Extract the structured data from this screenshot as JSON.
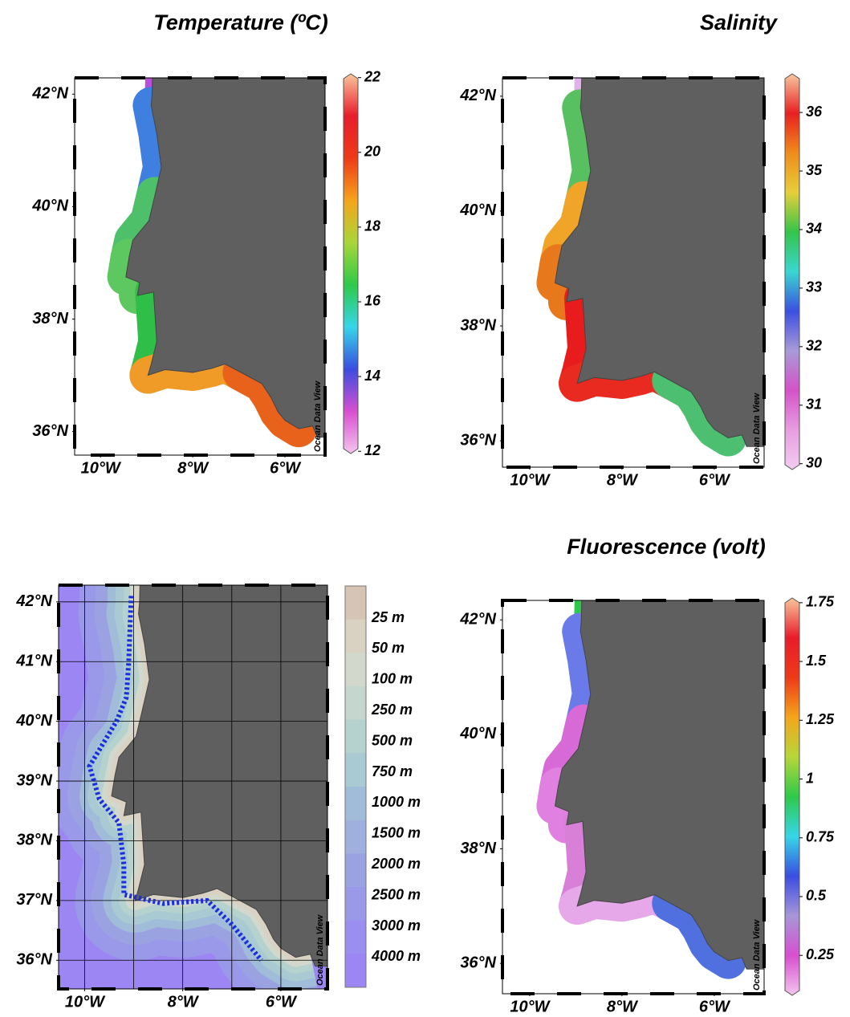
{
  "panels": [
    {
      "title": "Temperature (ºC)",
      "lonlim": [
        -10.56,
        -5.13
      ],
      "latlim": [
        35.58,
        42.29
      ],
      "lonticks": [
        {
          "value": -10,
          "label": "10°W"
        },
        {
          "value": -8,
          "label": "8°W"
        },
        {
          "value": -6,
          "label": "6°W"
        }
      ],
      "latticks": [
        {
          "value": 42,
          "label": "42°N"
        },
        {
          "value": 40,
          "label": "40°N"
        },
        {
          "value": 38,
          "label": "38°N"
        },
        {
          "value": 36,
          "label": "36°N"
        }
      ],
      "colorbar": {
        "lim": [
          11.94,
          22.1
        ],
        "ticks": [
          12,
          14,
          16,
          18,
          20,
          22
        ],
        "colors": [
          "#f3c6ee",
          "#d84fd0",
          "#3a4de0",
          "#36d6e8",
          "#2ec94a",
          "#a9d63a",
          "#f4a51c",
          "#ee3a18",
          "#e81c2c",
          "#f9c69a"
        ]
      },
      "band_colors": [
        "#b84fd8",
        "#3f7fe0",
        "#4fc06a",
        "#5ec860",
        "#2fbf48",
        "#f09a28",
        "#e8621c"
      ],
      "watermark": "Ocean Data View"
    },
    {
      "title": "Salinity",
      "lonlim": [
        -10.59,
        -4.92
      ],
      "latlim": [
        35.54,
        42.32
      ],
      "lonticks": [
        {
          "value": -10,
          "label": "10°W"
        },
        {
          "value": -8,
          "label": "8°W"
        },
        {
          "value": -6,
          "label": "6°W"
        }
      ],
      "latticks": [
        {
          "value": 42,
          "label": "42°N"
        },
        {
          "value": 40,
          "label": "40°N"
        },
        {
          "value": 38,
          "label": "38°N"
        },
        {
          "value": 36,
          "label": "36°N"
        }
      ],
      "colorbar": {
        "lim": [
          29.9,
          36.66
        ],
        "ticks": [
          36,
          35,
          34,
          33,
          32,
          31,
          30
        ],
        "colors": [
          "#f2cdf0",
          "#e79ee0",
          "#d452c8",
          "#a99ad8",
          "#3b4fe0",
          "#3ad6d0",
          "#34c44a",
          "#e6cf3a",
          "#f08c1c",
          "#e82020",
          "#f7c8a0"
        ]
      },
      "band_colors": [
        "#e0b0e8",
        "#58c060",
        "#f0a428",
        "#e8781c",
        "#e81c1c",
        "#e82a20",
        "#4cc070"
      ],
      "watermark": "Ocean Data View"
    },
    {
      "lonlim": [
        -10.53,
        -5.05
      ],
      "latlim": [
        35.52,
        42.28
      ],
      "lonticks": [
        {
          "value": -10,
          "label": "10°W"
        },
        {
          "value": -8,
          "label": "8°W"
        },
        {
          "value": -6,
          "label": "6°W"
        }
      ],
      "latticks": [
        {
          "value": 42,
          "label": "42°N"
        },
        {
          "value": 41,
          "label": "41°N"
        },
        {
          "value": 40,
          "label": "40°N"
        },
        {
          "value": 39,
          "label": "39°N"
        },
        {
          "value": 38,
          "label": "38°N"
        },
        {
          "value": 37,
          "label": "37°N"
        },
        {
          "value": 36,
          "label": "36°N"
        }
      ],
      "grid_lon": [
        -10,
        -9,
        -8,
        -7,
        -6
      ],
      "depth_levels": [
        "25 m",
        "50 m",
        "100 m",
        "250 m",
        "500 m",
        "750 m",
        "1000 m",
        "1500 m",
        "2000 m",
        "2500 m",
        "3000 m",
        "4000 m"
      ],
      "depth_colors": [
        "#d6c5b4",
        "#d9d2c2",
        "#d2d8cb",
        "#c4d6cd",
        "#b5d2cf",
        "#a9cad2",
        "#a0bcd8",
        "#9fb0de",
        "#9aa2e2",
        "#9a98e8",
        "#9a8ef0",
        "#9b86f3"
      ],
      "watermark": "Ocean Data View"
    },
    {
      "title": "Fluorescence (volt)",
      "lonlim": [
        -10.59,
        -4.92
      ],
      "latlim": [
        35.47,
        42.34
      ],
      "lonticks": [
        {
          "value": -10,
          "label": "10°W"
        },
        {
          "value": -8,
          "label": "8°W"
        },
        {
          "value": -6,
          "label": "6°W"
        }
      ],
      "latticks": [
        {
          "value": 42,
          "label": "42°N"
        },
        {
          "value": 40,
          "label": "40°N"
        },
        {
          "value": 38,
          "label": "38°N"
        },
        {
          "value": 36,
          "label": "36°N"
        }
      ],
      "colorbar": {
        "lim": [
          0.08,
          1.77
        ],
        "ticks": [
          1.75,
          1.5,
          1.25,
          1,
          0.75,
          0.5,
          0.25
        ],
        "colors": [
          "#f3c6ee",
          "#d84fd0",
          "#a796d8",
          "#3a4de0",
          "#36d6e8",
          "#2ec94a",
          "#b6d63a",
          "#f4a51c",
          "#ee3a18",
          "#e81c2c",
          "#f9c69a"
        ]
      },
      "band_colors": [
        "#2ec94a",
        "#6a7ae8",
        "#d86ad8",
        "#e080e0",
        "#d880d8",
        "#e6a8e8",
        "#5070e0"
      ],
      "watermark": "Ocean Data View"
    }
  ]
}
